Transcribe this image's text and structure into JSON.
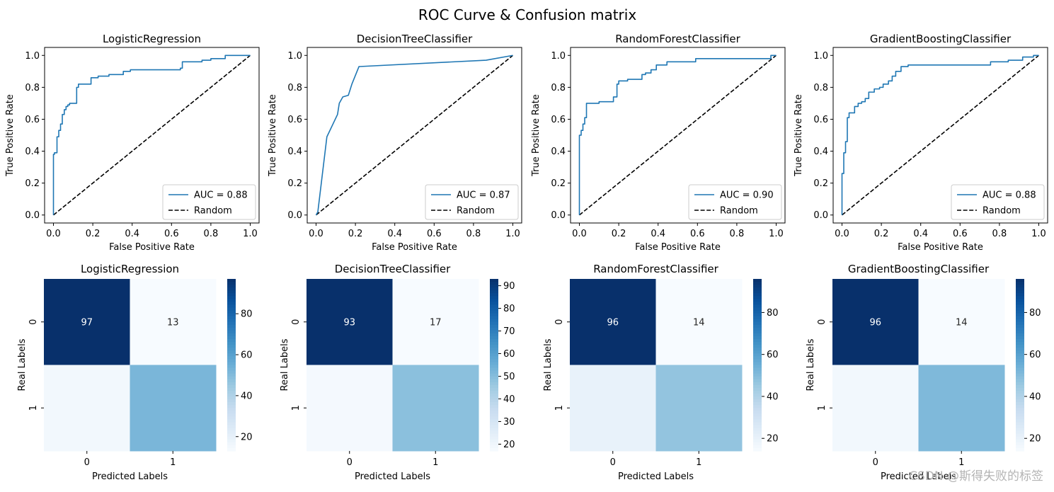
{
  "figure": {
    "title": "ROC Curve & Confusion matrix",
    "watermark": "CSDN @斯得失败的标签"
  },
  "chart_data": [
    {
      "type": "line",
      "title": "LogisticRegression",
      "xlabel": "False Positive Rate",
      "ylabel": "True Positive Rate",
      "xlim": [
        0,
        1
      ],
      "ylim": [
        0,
        1
      ],
      "xticks": [
        "0.0",
        "0.2",
        "0.4",
        "0.6",
        "0.8",
        "1.0"
      ],
      "yticks": [
        "0.0",
        "0.2",
        "0.4",
        "0.6",
        "0.8",
        "1.0"
      ],
      "legend": [
        "AUC = 0.88",
        "Random"
      ],
      "legend_position": "lower right",
      "series": [
        {
          "name": "AUC = 0.88",
          "x": [
            0,
            0,
            0.005,
            0.005,
            0.018,
            0.018,
            0.027,
            0.027,
            0.036,
            0.036,
            0.045,
            0.045,
            0.055,
            0.055,
            0.064,
            0.064,
            0.073,
            0.073,
            0.082,
            0.082,
            0.091,
            0.091,
            0.118,
            0.118,
            0.127,
            0.127,
            0.191,
            0.191,
            0.227,
            0.227,
            0.282,
            0.282,
            0.355,
            0.355,
            0.391,
            0.391,
            0.645,
            0.645,
            0.655,
            0.655,
            0.755,
            0.755,
            0.8,
            0.8,
            0.873,
            0.873,
            1.0
          ],
          "y": [
            0,
            0.38,
            0.38,
            0.39,
            0.39,
            0.49,
            0.49,
            0.53,
            0.53,
            0.57,
            0.57,
            0.63,
            0.63,
            0.66,
            0.66,
            0.68,
            0.68,
            0.69,
            0.69,
            0.7,
            0.7,
            0.7,
            0.7,
            0.8,
            0.8,
            0.82,
            0.82,
            0.86,
            0.86,
            0.87,
            0.87,
            0.88,
            0.88,
            0.9,
            0.9,
            0.91,
            0.91,
            0.92,
            0.92,
            0.96,
            0.96,
            0.97,
            0.97,
            0.98,
            0.98,
            1.0,
            1.0
          ]
        },
        {
          "name": "Random",
          "x": [
            0,
            1
          ],
          "y": [
            0,
            1
          ],
          "style": "dashed"
        }
      ]
    },
    {
      "type": "line",
      "title": "DecisionTreeClassifier",
      "xlabel": "False Positive Rate",
      "ylabel": "True Positive Rate",
      "xlim": [
        0,
        1
      ],
      "ylim": [
        0,
        1
      ],
      "xticks": [
        "0.0",
        "0.2",
        "0.4",
        "0.6",
        "0.8",
        "1.0"
      ],
      "yticks": [
        "0.0",
        "0.2",
        "0.4",
        "0.6",
        "0.8",
        "1.0"
      ],
      "legend": [
        "AUC = 0.87",
        "Random"
      ],
      "legend_position": "lower right",
      "series": [
        {
          "name": "AUC = 0.87",
          "x": [
            0,
            0.009,
            0.055,
            0.109,
            0.118,
            0.127,
            0.136,
            0.164,
            0.182,
            0.218,
            0.864,
            1.0
          ],
          "y": [
            0,
            0.02,
            0.49,
            0.63,
            0.7,
            0.72,
            0.74,
            0.75,
            0.82,
            0.93,
            0.97,
            1.0
          ]
        },
        {
          "name": "Random",
          "x": [
            0,
            1
          ],
          "y": [
            0,
            1
          ],
          "style": "dashed"
        }
      ]
    },
    {
      "type": "line",
      "title": "RandomForestClassifier",
      "xlabel": "False Positive Rate",
      "ylabel": "True Positive Rate",
      "xlim": [
        0,
        1
      ],
      "ylim": [
        0,
        1
      ],
      "xticks": [
        "0.0",
        "0.2",
        "0.4",
        "0.6",
        "0.8",
        "1.0"
      ],
      "yticks": [
        "0.0",
        "0.2",
        "0.4",
        "0.6",
        "0.8",
        "1.0"
      ],
      "legend": [
        "AUC = 0.90",
        "Random"
      ],
      "legend_position": "lower right",
      "series": [
        {
          "name": "AUC = 0.90",
          "x": [
            0,
            0,
            0.009,
            0.009,
            0.018,
            0.018,
            0.027,
            0.027,
            0.036,
            0.036,
            0.1,
            0.1,
            0.173,
            0.173,
            0.191,
            0.191,
            0.2,
            0.2,
            0.245,
            0.245,
            0.318,
            0.318,
            0.336,
            0.336,
            0.364,
            0.364,
            0.391,
            0.391,
            0.445,
            0.445,
            0.591,
            0.591,
            0.973,
            0.973,
            1.0
          ],
          "y": [
            0,
            0.5,
            0.5,
            0.53,
            0.53,
            0.57,
            0.57,
            0.61,
            0.61,
            0.7,
            0.7,
            0.71,
            0.71,
            0.74,
            0.74,
            0.82,
            0.82,
            0.84,
            0.84,
            0.85,
            0.85,
            0.88,
            0.88,
            0.89,
            0.89,
            0.91,
            0.91,
            0.94,
            0.94,
            0.96,
            0.96,
            0.98,
            0.98,
            1.0,
            1.0
          ]
        },
        {
          "name": "Random",
          "x": [
            0,
            1
          ],
          "y": [
            0,
            1
          ],
          "style": "dashed"
        }
      ]
    },
    {
      "type": "line",
      "title": "GradientBoostingClassifier",
      "xlabel": "False Positive Rate",
      "ylabel": "True Positive Rate",
      "xlim": [
        0,
        1
      ],
      "ylim": [
        0,
        1
      ],
      "xticks": [
        "0.0",
        "0.2",
        "0.4",
        "0.6",
        "0.8",
        "1.0"
      ],
      "yticks": [
        "0.0",
        "0.2",
        "0.4",
        "0.6",
        "0.8",
        "1.0"
      ],
      "legend": [
        "AUC = 0.88",
        "Random"
      ],
      "legend_position": "lower right",
      "series": [
        {
          "name": "AUC = 0.88",
          "x": [
            0,
            0,
            0.009,
            0.009,
            0.018,
            0.018,
            0.027,
            0.027,
            0.036,
            0.036,
            0.064,
            0.064,
            0.082,
            0.082,
            0.1,
            0.1,
            0.118,
            0.118,
            0.136,
            0.136,
            0.164,
            0.164,
            0.191,
            0.191,
            0.209,
            0.209,
            0.236,
            0.236,
            0.255,
            0.255,
            0.273,
            0.273,
            0.3,
            0.3,
            0.336,
            0.336,
            0.755,
            0.755,
            0.845,
            0.845,
            0.918,
            0.918,
            0.973,
            0.973,
            1.0
          ],
          "y": [
            0,
            0.26,
            0.26,
            0.39,
            0.39,
            0.46,
            0.46,
            0.61,
            0.61,
            0.64,
            0.64,
            0.68,
            0.68,
            0.7,
            0.7,
            0.71,
            0.71,
            0.73,
            0.73,
            0.77,
            0.77,
            0.79,
            0.79,
            0.8,
            0.8,
            0.82,
            0.82,
            0.84,
            0.84,
            0.87,
            0.87,
            0.9,
            0.9,
            0.93,
            0.93,
            0.94,
            0.94,
            0.96,
            0.96,
            0.97,
            0.97,
            0.99,
            0.99,
            1.0,
            1.0
          ]
        },
        {
          "name": "Random",
          "x": [
            0,
            1
          ],
          "y": [
            0,
            1
          ],
          "style": "dashed"
        }
      ]
    },
    {
      "type": "heatmap",
      "title": "LogisticRegression",
      "xlabel": "Predicted Labels",
      "ylabel": "Real Labels",
      "x_categories": [
        "0",
        "1"
      ],
      "y_categories": [
        "0",
        "1"
      ],
      "values": [
        [
          97,
          13
        ],
        [
          15,
          52
        ]
      ],
      "annotations": [
        [
          "97",
          "13"
        ],
        [
          "",
          ""
        ]
      ],
      "colorbar_range": [
        13,
        97
      ],
      "colorbar_ticks": [
        "20",
        "40",
        "60",
        "80"
      ]
    },
    {
      "type": "heatmap",
      "title": "DecisionTreeClassifier",
      "xlabel": "Predicted Labels",
      "ylabel": "Real Labels",
      "x_categories": [
        "0",
        "1"
      ],
      "y_categories": [
        "0",
        "1"
      ],
      "values": [
        [
          93,
          17
        ],
        [
          18,
          49
        ]
      ],
      "annotations": [
        [
          "93",
          "17"
        ],
        [
          "",
          ""
        ]
      ],
      "colorbar_range": [
        17,
        93
      ],
      "colorbar_ticks": [
        "20",
        "30",
        "40",
        "50",
        "60",
        "70",
        "80",
        "90"
      ]
    },
    {
      "type": "heatmap",
      "title": "RandomForestClassifier",
      "xlabel": "Predicted Labels",
      "ylabel": "Real Labels",
      "x_categories": [
        "0",
        "1"
      ],
      "y_categories": [
        "0",
        "1"
      ],
      "values": [
        [
          96,
          14
        ],
        [
          20,
          47
        ]
      ],
      "annotations": [
        [
          "96",
          "14"
        ],
        [
          "",
          ""
        ]
      ],
      "colorbar_range": [
        14,
        96
      ],
      "colorbar_ticks": [
        "20",
        "40",
        "60",
        "80"
      ]
    },
    {
      "type": "heatmap",
      "title": "GradientBoostingClassifier",
      "xlabel": "Predicted Labels",
      "ylabel": "Real Labels",
      "x_categories": [
        "0",
        "1"
      ],
      "y_categories": [
        "0",
        "1"
      ],
      "values": [
        [
          96,
          14
        ],
        [
          16,
          51
        ]
      ],
      "annotations": [
        [
          "96",
          "14"
        ],
        [
          "",
          ""
        ]
      ],
      "colorbar_range": [
        14,
        96
      ],
      "colorbar_ticks": [
        "20",
        "40",
        "60",
        "80"
      ]
    }
  ]
}
